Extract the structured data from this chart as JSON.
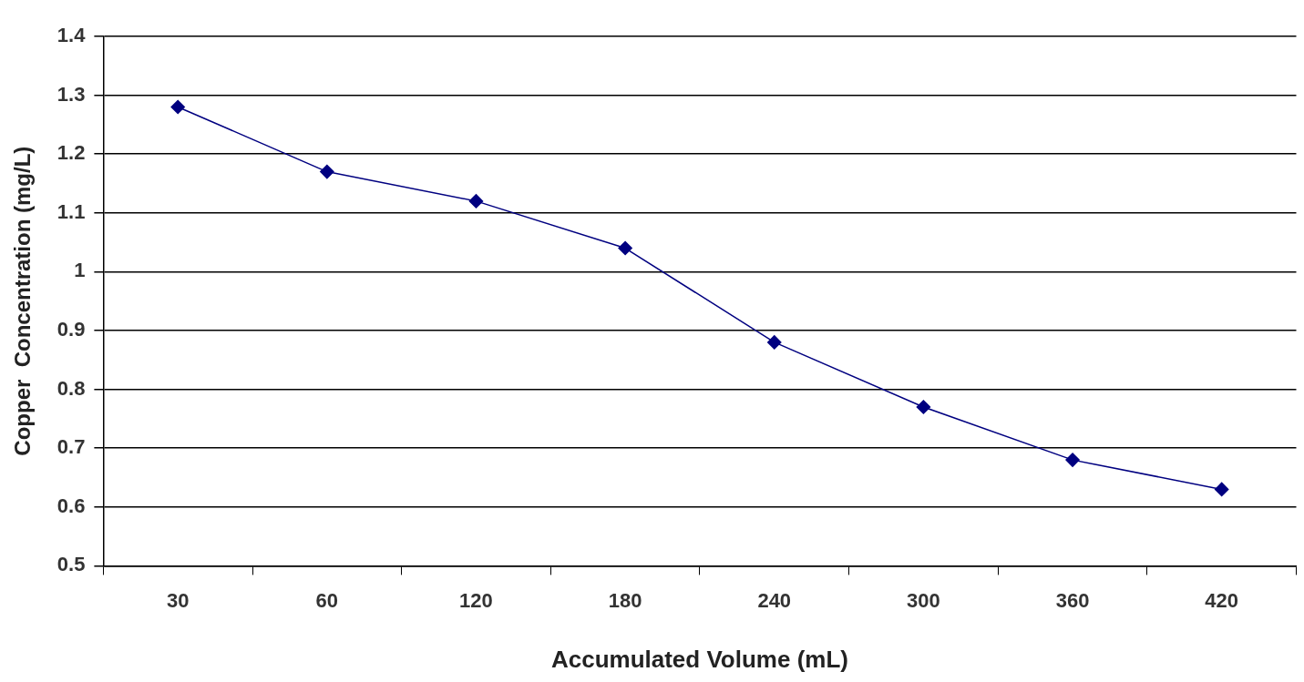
{
  "chart_data": {
    "type": "line",
    "xlabel": "Accumulated Volume (mL)",
    "ylabel": "Copper  Concentration (mg/L)",
    "categories": [
      "30",
      "60",
      "120",
      "180",
      "240",
      "300",
      "360",
      "420"
    ],
    "series": [
      {
        "color": "#000080",
        "values": [
          1.28,
          1.17,
          1.12,
          1.04,
          0.88,
          0.77,
          0.68,
          0.63
        ]
      }
    ],
    "ylim": [
      0.5,
      1.4
    ],
    "yticks": [
      0.5,
      0.6,
      0.7,
      0.8,
      0.9,
      1,
      1.1,
      1.2,
      1.3,
      1.4
    ],
    "grid": "y",
    "legend": false,
    "marker": "diamond",
    "line_style": "solid"
  }
}
